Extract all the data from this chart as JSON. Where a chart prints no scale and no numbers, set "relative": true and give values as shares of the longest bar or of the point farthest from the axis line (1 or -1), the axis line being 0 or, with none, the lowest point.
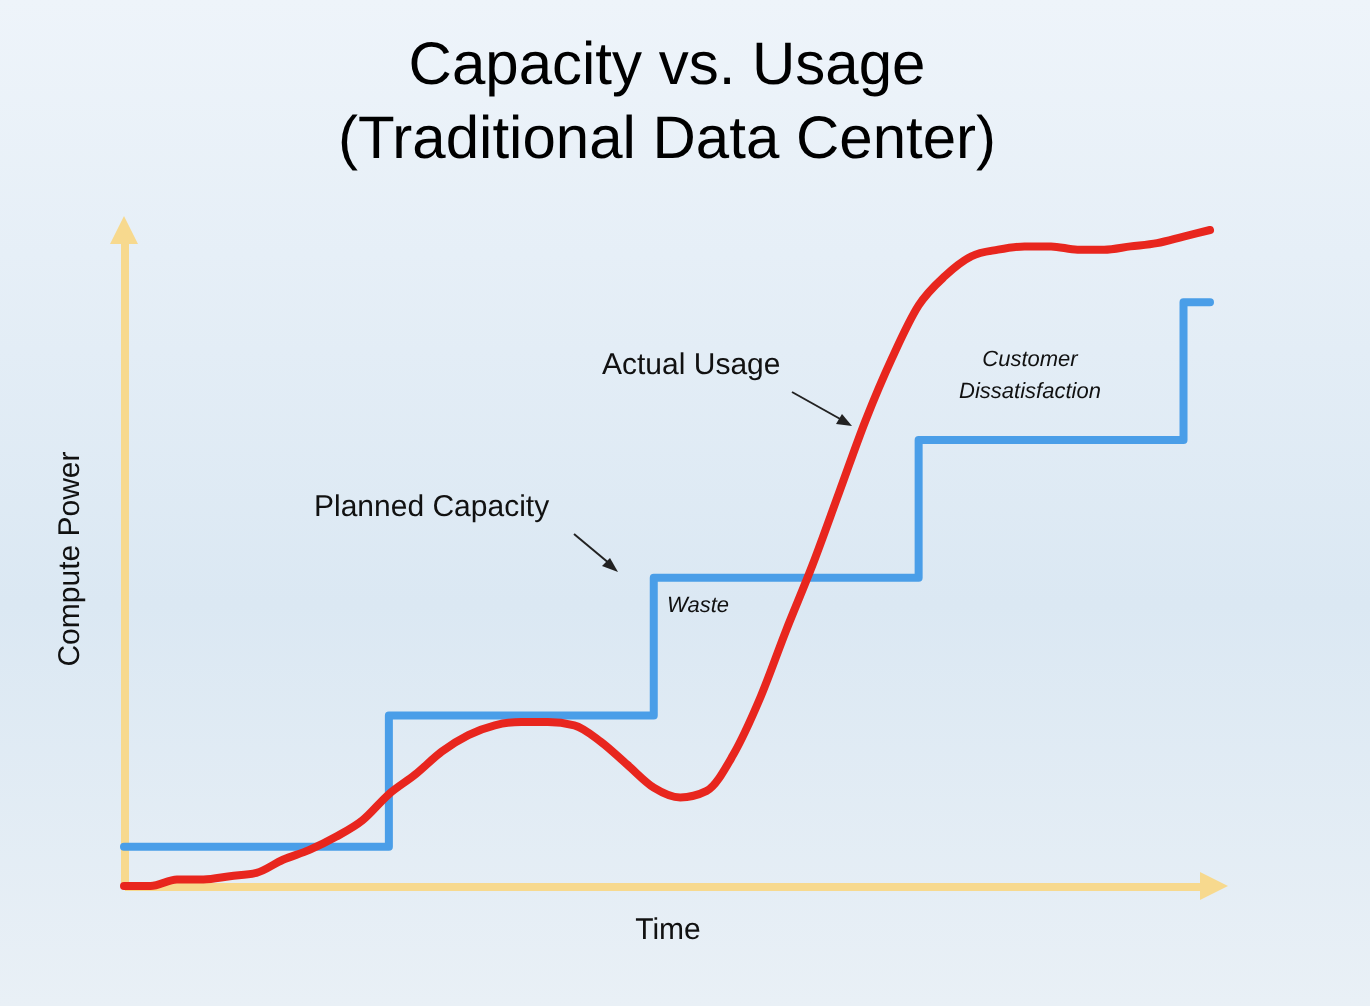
{
  "chart_data": {
    "type": "line",
    "title": "Capacity vs. Usage\n(Traditional Data Center)",
    "xlabel": "Time",
    "ylabel": "Compute Power",
    "relative": true,
    "grid": false,
    "categories": [
      null,
      null,
      null,
      null,
      null,
      null,
      null,
      null,
      null,
      null,
      null,
      null,
      null,
      null,
      null,
      null,
      null,
      null,
      null,
      null,
      null,
      null,
      null,
      null,
      null,
      null,
      null,
      null,
      null,
      null,
      null,
      null,
      null,
      null,
      null,
      null,
      null,
      null,
      null,
      null,
      null,
      null
    ],
    "series": [
      {
        "type": "step",
        "color": "#4a9ee8",
        "values": [
          0.06,
          0.06,
          0.06,
          0.06,
          0.06,
          0.06,
          0.06,
          0.06,
          0.06,
          0.06,
          0.26,
          0.26,
          0.26,
          0.26,
          0.26,
          0.26,
          0.26,
          0.26,
          0.26,
          0.26,
          0.47,
          0.47,
          0.47,
          0.47,
          0.47,
          0.47,
          0.47,
          0.47,
          0.47,
          0.47,
          0.68,
          0.68,
          0.68,
          0.68,
          0.68,
          0.68,
          0.68,
          0.68,
          0.68,
          0.68,
          0.89,
          0.89
        ]
      },
      {
        "color": "#e8261e",
        "values": [
          0,
          0,
          0.01,
          0.01,
          0.015,
          0.02,
          0.04,
          0.055,
          0.075,
          0.1,
          0.14,
          0.17,
          0.205,
          0.23,
          0.245,
          0.25,
          0.25,
          0.245,
          0.22,
          0.185,
          0.15,
          0.135,
          0.145,
          0.2,
          0.285,
          0.39,
          0.49,
          0.6,
          0.71,
          0.805,
          0.885,
          0.93,
          0.96,
          0.97,
          0.975,
          0.975,
          0.97,
          0.97,
          0.975,
          0.98,
          0.99,
          1
        ]
      }
    ],
    "annotations": [
      "Planned Capacity",
      "Actual Usage",
      "Waste",
      "Customer Dissatisfaction"
    ]
  }
}
